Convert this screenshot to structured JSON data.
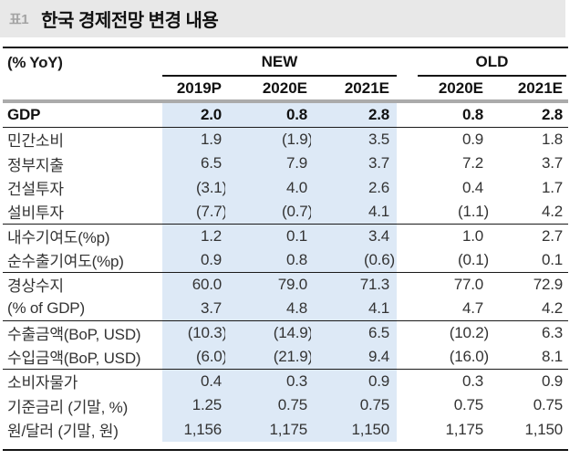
{
  "title_bar": {
    "tag": "표1",
    "title": "한국 경제전망 변경 내용"
  },
  "table": {
    "unit_label": "(% YoY)",
    "column_groups": [
      {
        "label": "NEW",
        "columns": [
          "2019P",
          "2020E",
          "2021E"
        ]
      },
      {
        "label": "OLD",
        "columns": [
          "2020E",
          "2021E"
        ]
      }
    ],
    "rows": [
      {
        "label": "GDP",
        "values": [
          "2.0",
          "0.8",
          "2.8",
          "0.8",
          "2.8"
        ],
        "bold": true,
        "separator_after": true
      },
      {
        "label": "민간소비",
        "values": [
          "1.9",
          "(1.9)",
          "3.5",
          "0.9",
          "1.8"
        ],
        "bold": false,
        "separator_after": false
      },
      {
        "label": "정부지출",
        "values": [
          "6.5",
          "7.9",
          "3.7",
          "7.2",
          "3.7"
        ],
        "bold": false,
        "separator_after": false
      },
      {
        "label": "건설투자",
        "values": [
          "(3.1)",
          "4.0",
          "2.6",
          "0.4",
          "1.7"
        ],
        "bold": false,
        "separator_after": false
      },
      {
        "label": "설비투자",
        "values": [
          "(7.7)",
          "(0.7)",
          "4.1",
          "(1.1)",
          "4.2"
        ],
        "bold": false,
        "separator_after": true
      },
      {
        "label": "내수기여도(%p)",
        "values": [
          "1.2",
          "0.1",
          "3.4",
          "1.0",
          "2.7"
        ],
        "bold": false,
        "separator_after": false
      },
      {
        "label": "순수출기여도(%p)",
        "values": [
          "0.9",
          "0.8",
          "(0.6)",
          "(0.1)",
          "0.1"
        ],
        "bold": false,
        "separator_after": true
      },
      {
        "label": "경상수지",
        "values": [
          "60.0",
          "79.0",
          "71.3",
          "77.0",
          "72.9"
        ],
        "bold": false,
        "separator_after": false
      },
      {
        "label": "(% of GDP)",
        "values": [
          "3.7",
          "4.8",
          "4.1",
          "4.7",
          "4.2"
        ],
        "bold": false,
        "separator_after": true
      },
      {
        "label": "수출금액(BoP, USD)",
        "values": [
          "(10.3)",
          "(14.9)",
          "6.5",
          "(10.2)",
          "6.3"
        ],
        "bold": false,
        "separator_after": false
      },
      {
        "label": "수입금액(BoP, USD)",
        "values": [
          "(6.0)",
          "(21.9)",
          "9.4",
          "(16.0)",
          "8.1"
        ],
        "bold": false,
        "separator_after": true
      },
      {
        "label": "소비자물가",
        "values": [
          "0.4",
          "0.3",
          "0.9",
          "0.3",
          "0.9"
        ],
        "bold": false,
        "separator_after": false
      },
      {
        "label": "기준금리 (기말, %)",
        "values": [
          "1.25",
          "0.75",
          "0.75",
          "0.75",
          "0.75"
        ],
        "bold": false,
        "separator_after": false
      },
      {
        "label": "원/달러 (기말, 원)",
        "values": [
          "1,156",
          "1,175",
          "1,150",
          "1,175",
          "1,150"
        ],
        "bold": false,
        "separator_after": false
      }
    ]
  },
  "colors": {
    "new_highlight": "#dde9f6",
    "banner_bg": "#e8e8e8",
    "tag_text": "#a3a3a3",
    "header_rule_gray": "#ababab",
    "rule_black": "#151515"
  }
}
